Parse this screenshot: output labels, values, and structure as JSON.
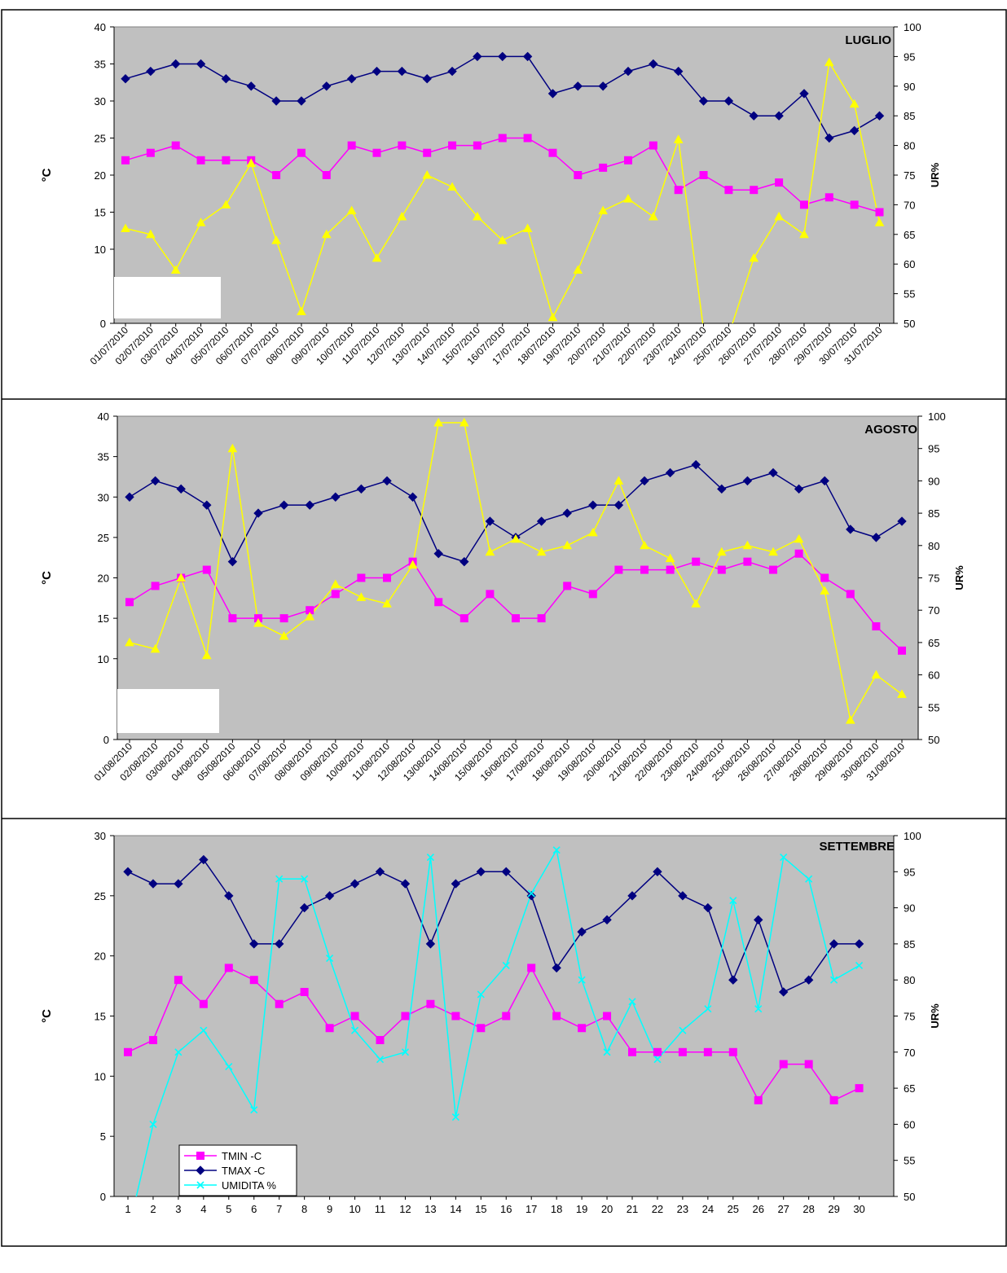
{
  "colors": {
    "plot_bg": "#c0c0c0",
    "tmin": "#ff00ff",
    "tmax": "#000080",
    "ur_luglio_agosto": "#ffff00",
    "umidita": "#00ffff"
  },
  "chart_data": [
    {
      "type": "line",
      "title": "LUGLIO",
      "ylabel": "°C",
      "y2label": "UR%",
      "ylim": [
        0,
        40
      ],
      "y2lim": [
        50,
        100
      ],
      "yticks": [
        0,
        10,
        15,
        20,
        25,
        30,
        35,
        40
      ],
      "y2ticks": [
        50,
        55,
        60,
        65,
        70,
        75,
        80,
        85,
        90,
        95,
        100
      ],
      "grid": false,
      "legend": "none",
      "categories": [
        "01/07/2010",
        "02/07/2010",
        "03/07/2010",
        "04/07/2010",
        "05/07/2010",
        "06/07/2010",
        "07/07/2010",
        "08/07/2010",
        "09/07/2010",
        "10/07/2010",
        "11/07/2010",
        "12/07/2010",
        "13/07/2010",
        "14/07/2010",
        "15/07/2010",
        "16/07/2010",
        "17/07/2010",
        "18/07/2010",
        "19/07/2010",
        "20/07/2010",
        "21/07/2010",
        "22/07/2010",
        "23/07/2010",
        "24/07/2010",
        "25/07/2010",
        "26/07/2010",
        "27/07/2010",
        "28/07/2010",
        "29/07/2010",
        "30/07/2010",
        "31/07/2010"
      ],
      "series": [
        {
          "key": "tmin",
          "axis": "left",
          "marker": "square",
          "values": [
            22,
            23,
            24,
            22,
            22,
            22,
            20,
            23,
            20,
            24,
            23,
            24,
            23,
            24,
            24,
            25,
            25,
            23,
            20,
            21,
            22,
            24,
            18,
            20,
            18,
            18,
            19,
            16,
            17,
            16,
            15
          ]
        },
        {
          "key": "tmax",
          "axis": "left",
          "marker": "diamond",
          "values": [
            33,
            34,
            35,
            35,
            33,
            32,
            30,
            30,
            32,
            33,
            34,
            34,
            33,
            34,
            36,
            36,
            36,
            31,
            32,
            32,
            34,
            35,
            34,
            30,
            30,
            28,
            28,
            31,
            25,
            26,
            28
          ]
        },
        {
          "key": "ur",
          "axis": "right",
          "marker": "triangle",
          "values": [
            66,
            65,
            59,
            67,
            70,
            77,
            64,
            52,
            65,
            69,
            61,
            68,
            75,
            73,
            68,
            64,
            66,
            51,
            59,
            69,
            71,
            68,
            81,
            49,
            48,
            61,
            68,
            65,
            94,
            87,
            67
          ]
        }
      ]
    },
    {
      "type": "line",
      "title": "AGOSTO",
      "ylabel": "°C",
      "y2label": "UR%",
      "ylim": [
        0,
        40
      ],
      "y2lim": [
        50,
        100
      ],
      "yticks": [
        0,
        10,
        15,
        20,
        25,
        30,
        35,
        40
      ],
      "y2ticks": [
        50,
        55,
        60,
        65,
        70,
        75,
        80,
        85,
        90,
        95,
        100
      ],
      "grid": false,
      "legend": "none",
      "categories": [
        "01/08/2010",
        "02/08/2010",
        "03/08/2010",
        "04/08/2010",
        "05/08/2010",
        "06/08/2010",
        "07/08/2010",
        "08/08/2010",
        "09/08/2010",
        "10/08/2010",
        "11/08/2010",
        "12/08/2010",
        "13/08/2010",
        "14/08/2010",
        "15/08/2010",
        "16/08/2010",
        "17/08/2010",
        "18/08/2010",
        "19/08/2010",
        "20/08/2010",
        "21/08/2010",
        "22/08/2010",
        "23/08/2010",
        "24/08/2010",
        "25/08/2010",
        "26/08/2010",
        "27/08/2010",
        "28/08/2010",
        "29/08/2010",
        "30/08/2010",
        "31/08/2010"
      ],
      "series": [
        {
          "key": "tmin",
          "axis": "left",
          "marker": "square",
          "values": [
            17,
            19,
            20,
            21,
            15,
            15,
            15,
            16,
            18,
            20,
            20,
            22,
            17,
            15,
            18,
            15,
            15,
            19,
            18,
            21,
            21,
            21,
            22,
            21,
            22,
            21,
            23,
            20,
            18,
            14,
            11
          ]
        },
        {
          "key": "tmax",
          "axis": "left",
          "marker": "diamond",
          "values": [
            30,
            32,
            31,
            29,
            22,
            28,
            29,
            29,
            30,
            31,
            32,
            30,
            23,
            22,
            27,
            25,
            27,
            28,
            29,
            29,
            32,
            33,
            34,
            31,
            32,
            33,
            31,
            32,
            26,
            25,
            27
          ]
        },
        {
          "key": "ur",
          "axis": "right",
          "marker": "triangle",
          "values": [
            65,
            64,
            75,
            63,
            95,
            68,
            66,
            69,
            74,
            72,
            71,
            77,
            99,
            99,
            79,
            81,
            79,
            80,
            82,
            90,
            80,
            78,
            71,
            79,
            80,
            79,
            81,
            73,
            53,
            60,
            57
          ]
        }
      ]
    },
    {
      "type": "line",
      "title": "SETTEMBRE",
      "ylabel": "°C",
      "y2label": "UR%",
      "ylim": [
        0,
        30
      ],
      "y2lim": [
        50,
        100
      ],
      "yticks": [
        0,
        5,
        10,
        15,
        20,
        25,
        30
      ],
      "y2ticks": [
        50,
        55,
        60,
        65,
        70,
        75,
        80,
        85,
        90,
        95,
        100
      ],
      "grid": false,
      "legend": "bottom-left",
      "categories": [
        "1",
        "2",
        "3",
        "4",
        "5",
        "6",
        "7",
        "8",
        "9",
        "10",
        "11",
        "12",
        "13",
        "14",
        "15",
        "16",
        "17",
        "18",
        "19",
        "20",
        "21",
        "22",
        "23",
        "24",
        "25",
        "26",
        "27",
        "28",
        "29",
        "30"
      ],
      "series": [
        {
          "key": "tmin",
          "name": "TMIN -C",
          "axis": "left",
          "marker": "square",
          "values": [
            12,
            13,
            18,
            16,
            19,
            18,
            16,
            17,
            14,
            15,
            13,
            15,
            16,
            15,
            14,
            15,
            19,
            15,
            14,
            15,
            12,
            12,
            12,
            12,
            12,
            8,
            11,
            11,
            8,
            9
          ]
        },
        {
          "key": "tmax",
          "name": "TMAX -C",
          "axis": "left",
          "marker": "diamond",
          "values": [
            27,
            26,
            26,
            28,
            25,
            21,
            21,
            24,
            25,
            26,
            27,
            26,
            21,
            26,
            27,
            27,
            25,
            19,
            22,
            23,
            25,
            27,
            25,
            24,
            18,
            23,
            17,
            18,
            21,
            21
          ]
        },
        {
          "key": "umidita",
          "name": "UMIDITA %",
          "axis": "right",
          "marker": "x",
          "values": [
            45,
            60,
            70,
            73,
            68,
            62,
            94,
            94,
            83,
            73,
            69,
            70,
            97,
            61,
            78,
            82,
            92,
            98,
            80,
            70,
            77,
            69,
            73,
            76,
            91,
            76,
            97,
            94,
            80,
            82
          ]
        }
      ]
    }
  ]
}
